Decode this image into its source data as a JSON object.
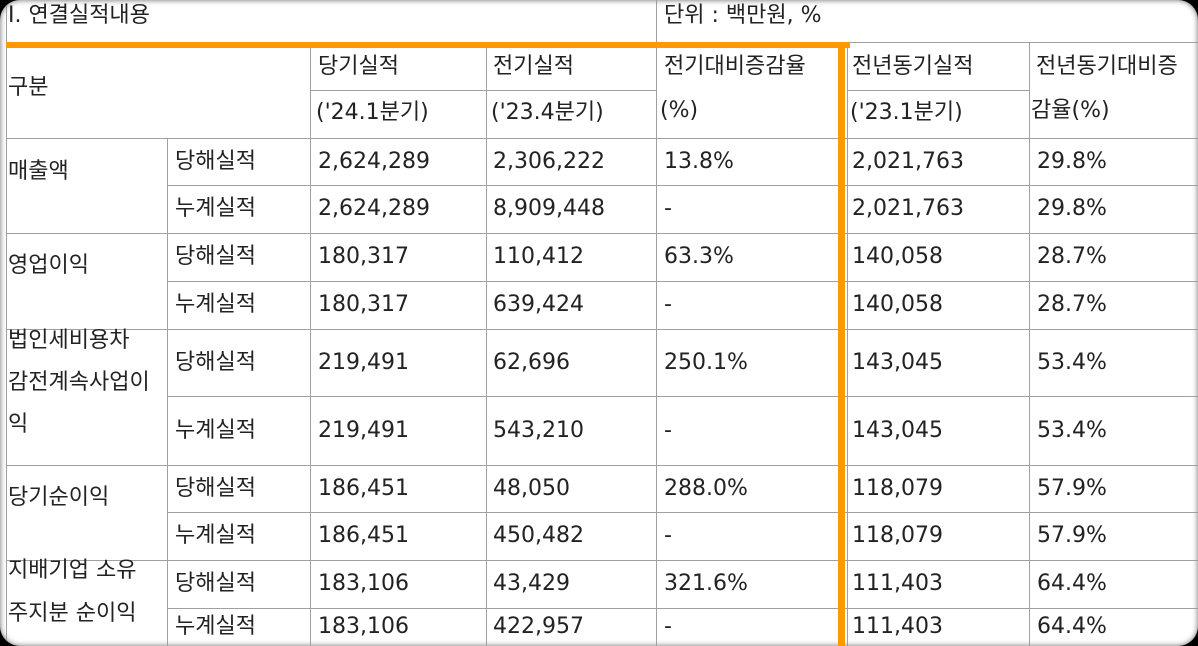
{
  "header": {
    "section_title": "I. 연결실적내용",
    "unit_label": "단위 : 백만원, %"
  },
  "columns": {
    "category": "구분",
    "current": {
      "label": "당기실적",
      "period": "('24.1분기)"
    },
    "previous": {
      "label": "전기실적",
      "period": "('23.4분기)"
    },
    "qoq": {
      "label": "전기대비증감율",
      "unit": "(%)"
    },
    "prior_year": {
      "label": "전년동기실적",
      "period": "('23.1분기)"
    },
    "yoy": {
      "label": "전년동기대비증",
      "unit": "감율(%)"
    }
  },
  "rows": [
    {
      "label_lines": [
        "매출액"
      ],
      "sub": [
        {
          "type": "당해실적",
          "current": "2,624,289",
          "previous": "2,306,222",
          "qoq": "13.8%",
          "prior_year": "2,021,763",
          "yoy": "29.8%"
        },
        {
          "type": "누계실적",
          "current": "2,624,289",
          "previous": "8,909,448",
          "qoq": "-",
          "prior_year": "2,021,763",
          "yoy": "29.8%"
        }
      ]
    },
    {
      "label_lines": [
        "영업이익"
      ],
      "sub": [
        {
          "type": "당해실적",
          "current": "180,317",
          "previous": "110,412",
          "qoq": "63.3%",
          "prior_year": "140,058",
          "yoy": "28.7%"
        },
        {
          "type": "누계실적",
          "current": "180,317",
          "previous": "639,424",
          "qoq": "-",
          "prior_year": "140,058",
          "yoy": "28.7%"
        }
      ]
    },
    {
      "label_lines": [
        "법인세비용차",
        "감전계속사업이",
        "익"
      ],
      "sub": [
        {
          "type": "당해실적",
          "current": "219,491",
          "previous": "62,696",
          "qoq": "250.1%",
          "prior_year": "143,045",
          "yoy": "53.4%"
        },
        {
          "type": "누계실적",
          "current": "219,491",
          "previous": "543,210",
          "qoq": "-",
          "prior_year": "143,045",
          "yoy": "53.4%"
        }
      ]
    },
    {
      "label_lines": [
        "당기순이익"
      ],
      "sub": [
        {
          "type": "당해실적",
          "current": "186,451",
          "previous": "48,050",
          "qoq": "288.0%",
          "prior_year": "118,079",
          "yoy": "57.9%"
        },
        {
          "type": "누계실적",
          "current": "186,451",
          "previous": "450,482",
          "qoq": "-",
          "prior_year": "118,079",
          "yoy": "57.9%"
        }
      ]
    },
    {
      "label_lines": [
        "지배기업 소유",
        "주지분 순이익"
      ],
      "sub": [
        {
          "type": "당해실적",
          "current": "183,106",
          "previous": "43,429",
          "qoq": "321.6%",
          "prior_year": "111,403",
          "yoy": "64.4%"
        },
        {
          "type": "누계실적",
          "current": "183,106",
          "previous": "422,957",
          "qoq": "-",
          "prior_year": "111,403",
          "yoy": "64.4%"
        }
      ]
    }
  ],
  "highlight_color": "#ff9900"
}
